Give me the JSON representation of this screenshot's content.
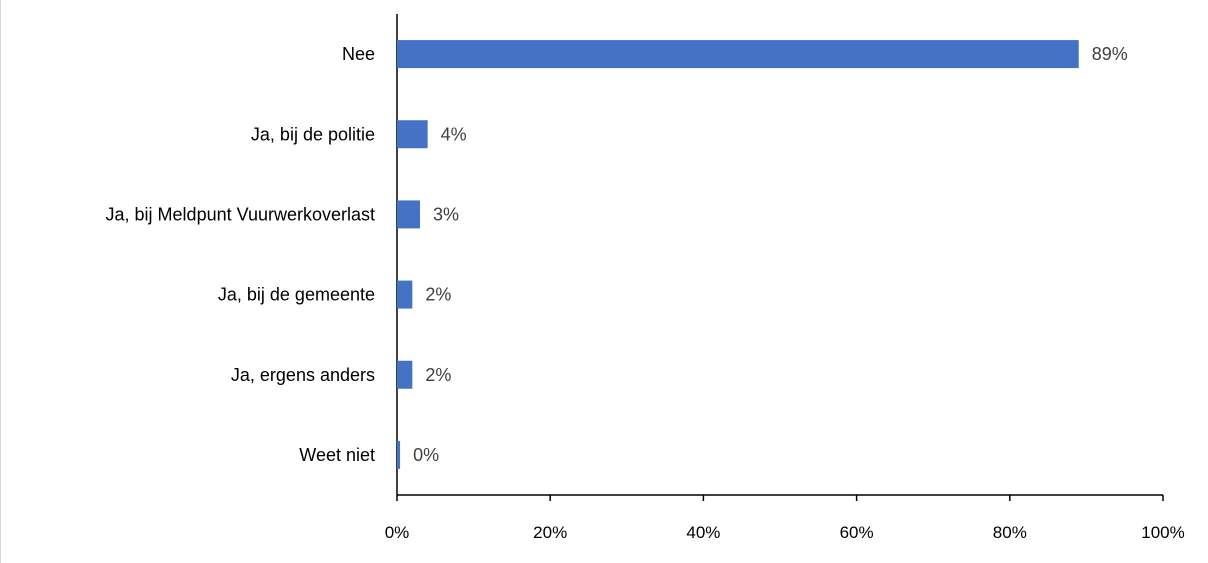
{
  "chart_data": {
    "type": "bar",
    "orientation": "horizontal",
    "categories": [
      "Nee",
      "Ja, bij de politie",
      "Ja, bij Meldpunt Vuurwerkoverlast",
      "Ja, bij de gemeente",
      "Ja, ergens anders",
      "Weet niet"
    ],
    "values": [
      89,
      4,
      3,
      2,
      2,
      0.4
    ],
    "value_labels": [
      "89%",
      "4%",
      "3%",
      "2%",
      "2%",
      "0%"
    ],
    "x_ticks": [
      "0%",
      "20%",
      "40%",
      "60%",
      "80%",
      "100%"
    ],
    "xlim": [
      0,
      100
    ],
    "grid": false,
    "bar_color": "#4472C4",
    "title": "",
    "xlabel": "",
    "ylabel": ""
  }
}
